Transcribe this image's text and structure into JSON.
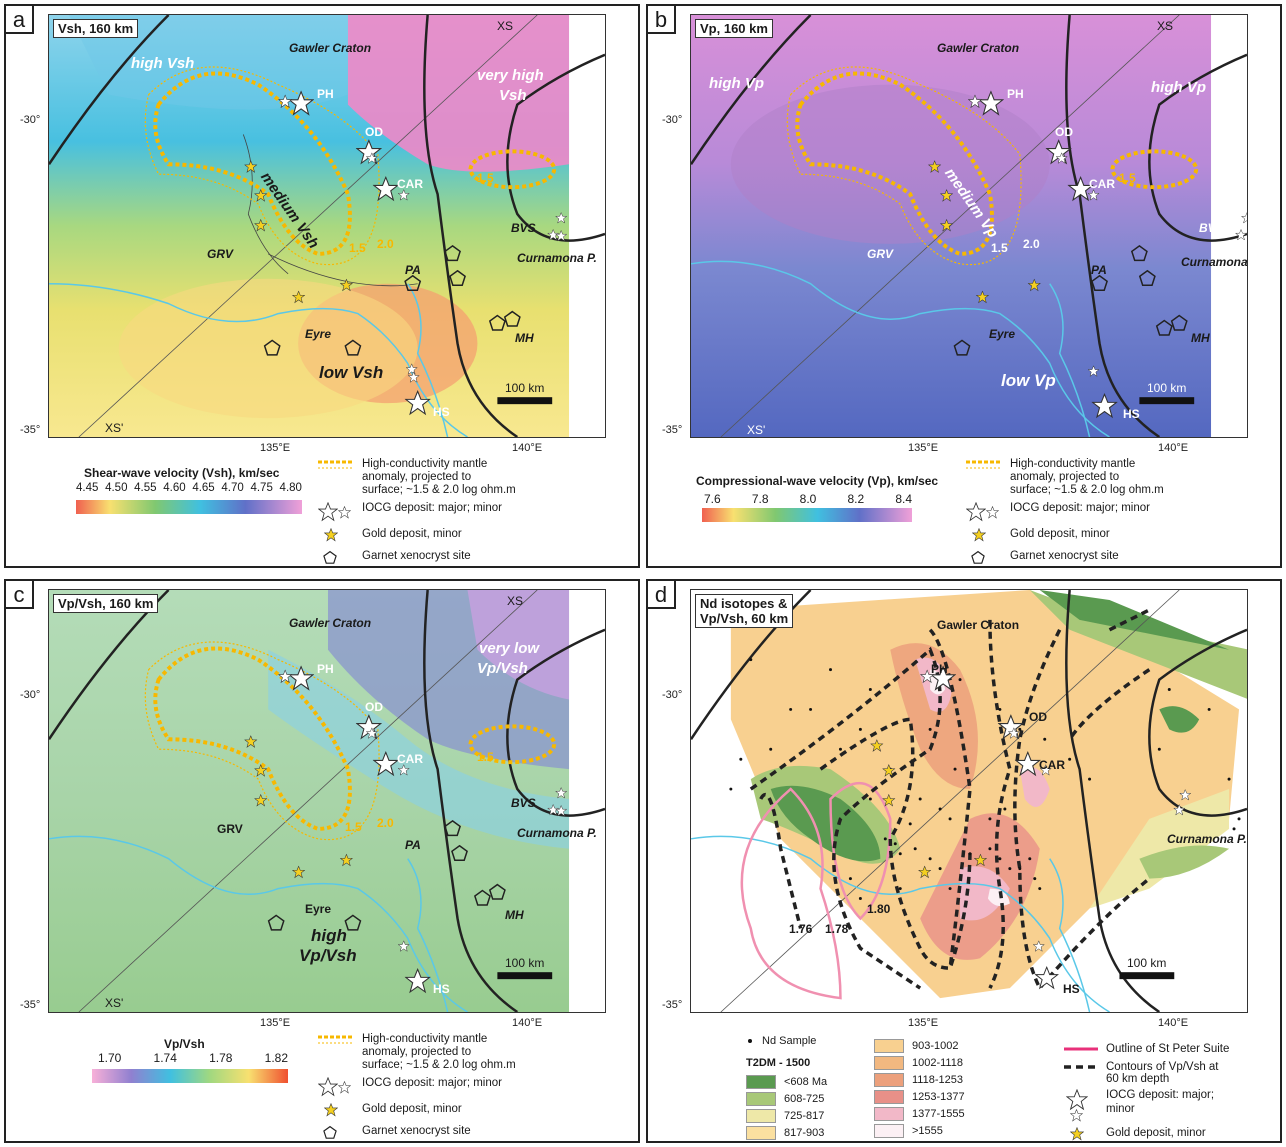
{
  "panels": {
    "a": {
      "letter": "a",
      "title": "Vsh, 160 km",
      "labels": {
        "high": "high Vsh",
        "very_high_1": "very high",
        "very_high_2": "Vsh",
        "medium": "medium Vsh",
        "low": "low Vsh"
      },
      "colorbar": {
        "title": "Shear-wave velocity (Vsh), km/sec",
        "ticks": [
          "4.45",
          "4.50",
          "4.55",
          "4.60",
          "4.65",
          "4.70",
          "4.75",
          "4.80"
        ]
      }
    },
    "b": {
      "letter": "b",
      "title": "Vp, 160 km",
      "labels": {
        "high_left": "high Vp",
        "high_right": "high Vp",
        "medium": "medium Vp",
        "low": "low Vp"
      },
      "colorbar": {
        "title": "Compressional-wave velocity (Vp), km/sec",
        "ticks": [
          "7.6",
          "7.8",
          "8.0",
          "8.2",
          "8.4"
        ]
      }
    },
    "c": {
      "letter": "c",
      "title": "Vp/Vsh, 160 km",
      "labels": {
        "very_low_1": "very low",
        "very_low_2": "Vp/Vsh",
        "high_1": "high",
        "high_2": "Vp/Vsh"
      },
      "colorbar": {
        "title": "Vp/Vsh",
        "ticks": [
          "1.70",
          "1.74",
          "1.78",
          "1.82"
        ]
      }
    },
    "d": {
      "letter": "d",
      "title_1": "Nd isotopes &",
      "title_2": "Vp/Vsh, 60 km",
      "contours": [
        "1.76",
        "1.78",
        "1.80"
      ],
      "legend": {
        "nd_sample": "Nd Sample",
        "t2dm_title": "T2DM - 1500",
        "classes_left": [
          {
            "label": "<608 Ma",
            "color": "#5a9a50"
          },
          {
            "label": "608-725",
            "color": "#a8c878"
          },
          {
            "label": "725-817",
            "color": "#eee8a8"
          },
          {
            "label": "817-903",
            "color": "#fbe0a0"
          }
        ],
        "classes_right": [
          {
            "label": "903-1002",
            "color": "#f8d090"
          },
          {
            "label": "1002-1118",
            "color": "#f2b880"
          },
          {
            "label": "1118-1253",
            "color": "#eca07c"
          },
          {
            "label": "1253-1377",
            "color": "#e89088"
          },
          {
            "label": "1377-1555",
            "color": "#f2b8c8"
          },
          {
            "label": ">1555",
            "color": "#fcf0f4"
          }
        ],
        "st_peter": "Outline of St Peter Suite",
        "contours_1": "Contours of Vp/Vsh at",
        "contours_2": "60 km depth",
        "iocg_1": "IOCG deposit: major;",
        "iocg_2": "minor",
        "gold": "Gold deposit, minor"
      }
    }
  },
  "common": {
    "gawler": "Gawler Craton",
    "curnamona": "Curnamona P.",
    "ph": "PH",
    "od": "OD",
    "car": "CAR",
    "hs": "HS",
    "bvs": "BVS",
    "grv": "GRV",
    "pa": "PA",
    "eyre": "Eyre",
    "mh": "MH",
    "xs": "XS",
    "xs_prime": "XS'",
    "c15": "1.5",
    "c20": "2.0",
    "lat_30": "-30°",
    "lat_35": "-35°",
    "lon_135": "135°E",
    "lon_140": "140°E",
    "scale": "100 km"
  },
  "legend_common": {
    "mantle_1": "High-conductivity mantle",
    "mantle_2": "anomaly, projected to",
    "mantle_3": "surface; ~1.5 & 2.0 log ohm.m",
    "iocg": "IOCG deposit: major; minor",
    "gold": "Gold deposit, minor",
    "garnet": "Garnet xenocryst site"
  },
  "colors": {
    "coast": "#5ac8e8",
    "conductivity": "#f7b800",
    "gold_star": "#f5d020"
  }
}
